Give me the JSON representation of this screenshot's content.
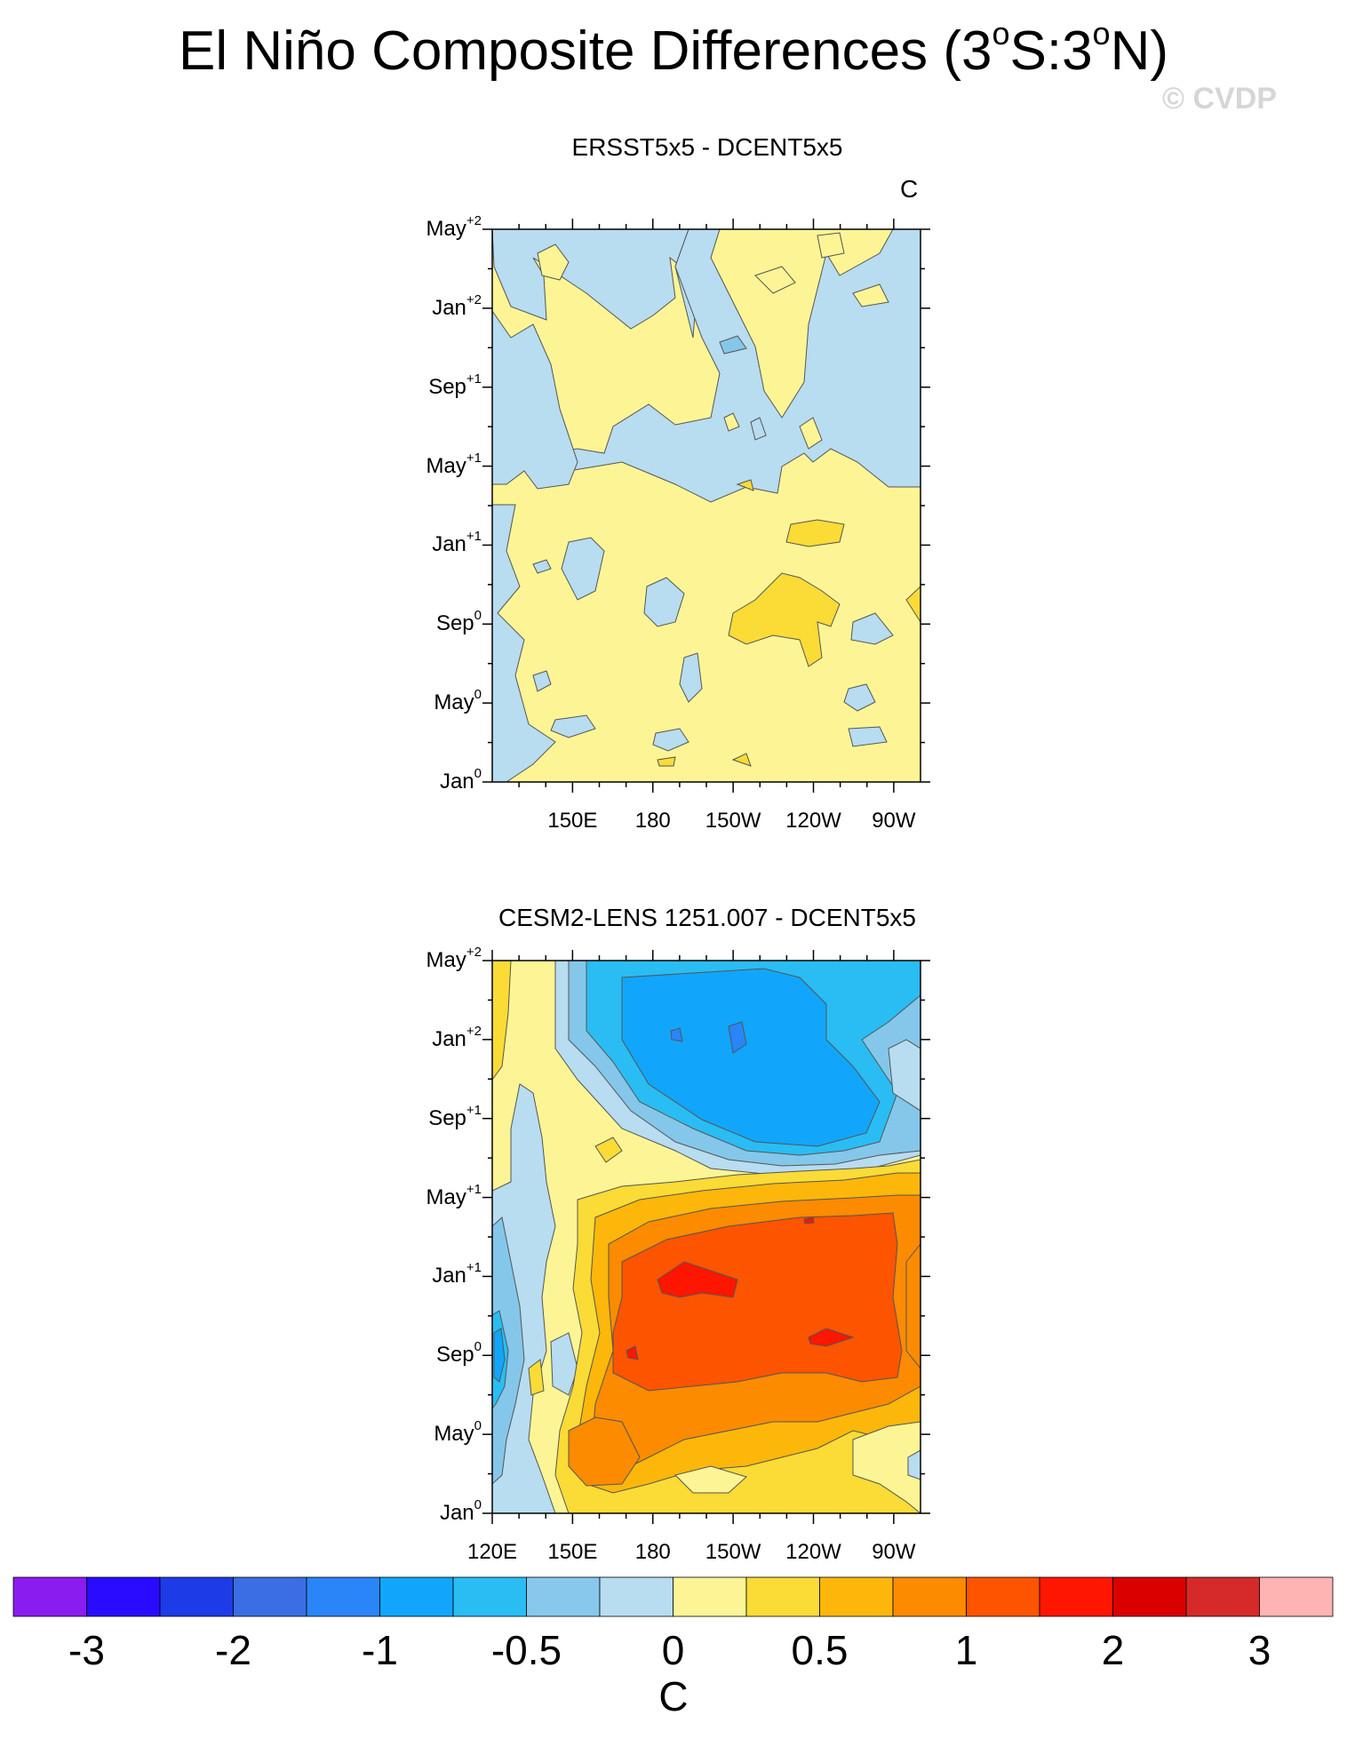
{
  "title": {
    "main_a": "El Niño Composite Differences (3",
    "sup1": "o",
    "main_b": "S:3",
    "sup2": "o",
    "main_c": "N)"
  },
  "copyright": "© CVDP",
  "colors": {
    "bluish": "#b8dcf0",
    "yellow": "#fdf595",
    "gold": "#fbdb36",
    "orange_light": "#fcb70a",
    "orange": "#fc8b00",
    "red_orange": "#fd5400",
    "red": "#ff1600",
    "blue_mid": "#84c7ea",
    "blue": "#1ca7fb",
    "blue_dark": "#2a7ef0"
  },
  "chart_data": [
    {
      "type": "heatmap",
      "title": "ERSST5x5 - DCENT5x5",
      "units": "C",
      "y_ticks": [
        {
          "base": "Jan",
          "sup": "0"
        },
        {
          "base": "May",
          "sup": "0"
        },
        {
          "base": "Sep",
          "sup": "0"
        },
        {
          "base": "Jan",
          "sup": "+1"
        },
        {
          "base": "May",
          "sup": "+1"
        },
        {
          "base": "Sep",
          "sup": "+1"
        },
        {
          "base": "Jan",
          "sup": "+2"
        },
        {
          "base": "May",
          "sup": "+2"
        }
      ],
      "x_ticks": [
        "150E",
        "180",
        "150W",
        "120W",
        "90W"
      ],
      "x_tick_lon": [
        150,
        180,
        210,
        240,
        270
      ],
      "xlim": [
        120,
        280
      ],
      "ylim_months": [
        0,
        28
      ],
      "note": "Differences mostly within -0.25 to 0.5 C; blue regions dominate upper (year +1/+2), yellow dominates lower."
    },
    {
      "type": "heatmap",
      "title": "CESM2-LENS 1251.007 - DCENT5x5",
      "units": "",
      "y_ticks": [
        {
          "base": "Jan",
          "sup": "0"
        },
        {
          "base": "May",
          "sup": "0"
        },
        {
          "base": "Sep",
          "sup": "0"
        },
        {
          "base": "Jan",
          "sup": "+1"
        },
        {
          "base": "May",
          "sup": "+1"
        },
        {
          "base": "Sep",
          "sup": "+1"
        },
        {
          "base": "Jan",
          "sup": "+2"
        },
        {
          "base": "May",
          "sup": "+2"
        }
      ],
      "x_ticks": [
        "120E",
        "150E",
        "180",
        "150W",
        "120W",
        "90W"
      ],
      "x_tick_lon": [
        120,
        150,
        180,
        210,
        240,
        270
      ],
      "xlim": [
        120,
        280
      ],
      "ylim_months": [
        0,
        28
      ],
      "note": "Strong warm anomaly (up to ~2 C) across central/eastern Pacific from Jan0 to May+1, cold anomaly (~-1 C) in year +1/+2."
    }
  ],
  "colorbar": {
    "colors": [
      "#8a1cf0",
      "#2a0bff",
      "#1e3be8",
      "#3b6ee2",
      "#2a85f8",
      "#11a6fb",
      "#29bdf4",
      "#87c8ec",
      "#b8dcf0",
      "#fdf595",
      "#fbdb36",
      "#fcb70a",
      "#fc8b00",
      "#fd5400",
      "#ff1600",
      "#da0000",
      "#d62a2a",
      "#ffb4b4"
    ],
    "labels": [
      {
        "text": "-3",
        "boundary": 1
      },
      {
        "text": "-2",
        "boundary": 3
      },
      {
        "text": "-1",
        "boundary": 5
      },
      {
        "text": "-0.5",
        "boundary": 7
      },
      {
        "text": "0",
        "boundary": 9
      },
      {
        "text": "0.5",
        "boundary": 11
      },
      {
        "text": "1",
        "boundary": 13
      },
      {
        "text": "2",
        "boundary": 15
      },
      {
        "text": "3",
        "boundary": 17
      }
    ],
    "unit": "C"
  }
}
